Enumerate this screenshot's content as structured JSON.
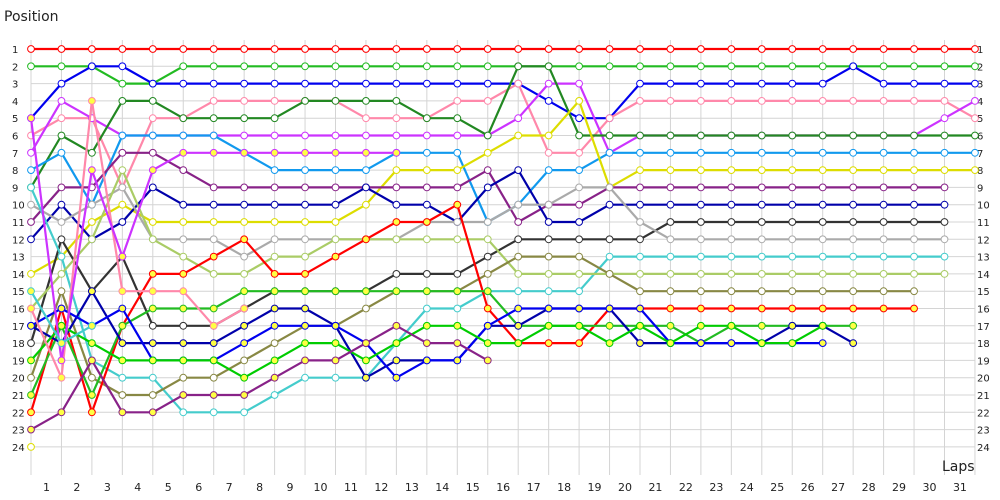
{
  "chart_data": {
    "type": "line",
    "ylabel": "Position",
    "xlabel": "Laps",
    "x_ticks": [
      1,
      2,
      3,
      4,
      5,
      6,
      7,
      8,
      9,
      10,
      11,
      12,
      13,
      14,
      15,
      16,
      17,
      18,
      19,
      20,
      21,
      22,
      23,
      24,
      25,
      26,
      27,
      28,
      29,
      30,
      31
    ],
    "y_ticks": [
      1,
      2,
      3,
      4,
      5,
      6,
      7,
      8,
      9,
      10,
      11,
      12,
      13,
      14,
      15,
      16,
      17,
      18,
      19,
      20,
      21,
      22,
      23,
      24
    ],
    "ylim": [
      1,
      24
    ],
    "xlim": [
      0,
      31
    ],
    "grid": true,
    "series": [
      {
        "color": "#ff0000",
        "fill": "#ffffff",
        "values": [
          1,
          1,
          1,
          1,
          1,
          1,
          1,
          1,
          1,
          1,
          1,
          1,
          1,
          1,
          1,
          1,
          1,
          1,
          1,
          1,
          1,
          1,
          1,
          1,
          1,
          1,
          1,
          1,
          1,
          1,
          1,
          1
        ]
      },
      {
        "color": "#22bb22",
        "fill": "#ffffff",
        "values": [
          2,
          2,
          2,
          3,
          3,
          2,
          2,
          2,
          2,
          2,
          2,
          2,
          2,
          2,
          2,
          2,
          2,
          2,
          2,
          2,
          2,
          2,
          2,
          2,
          2,
          2,
          2,
          2,
          2,
          2,
          2,
          2
        ]
      },
      {
        "color": "#0000ee",
        "fill": "#ffffff",
        "values": [
          5,
          3,
          2,
          2,
          3,
          3,
          3,
          3,
          3,
          3,
          3,
          3,
          3,
          3,
          3,
          3,
          3,
          4,
          5,
          5,
          3,
          3,
          3,
          3,
          3,
          3,
          3,
          2,
          3,
          3,
          3,
          3
        ]
      },
      {
        "color": "#ff88aa",
        "fill": "#ffffff",
        "values": [
          6,
          5,
          5,
          9,
          5,
          5,
          4,
          4,
          4,
          4,
          4,
          5,
          5,
          5,
          4,
          4,
          3,
          7,
          7,
          5,
          4,
          4,
          4,
          4,
          4,
          4,
          4,
          4,
          4,
          4,
          4,
          5
        ]
      },
      {
        "color": "#cc33ff",
        "fill": "#ffffff",
        "values": [
          7,
          4,
          5,
          6,
          6,
          6,
          6,
          6,
          6,
          6,
          6,
          6,
          6,
          6,
          6,
          6,
          5,
          3,
          3,
          7,
          6,
          6,
          6,
          6,
          6,
          6,
          6,
          6,
          6,
          6,
          5,
          4
        ]
      },
      {
        "color": "#228822",
        "fill": "#ffffff",
        "values": [
          9,
          6,
          7,
          4,
          4,
          5,
          5,
          5,
          5,
          4,
          4,
          4,
          4,
          5,
          5,
          6,
          2,
          2,
          6,
          6,
          6,
          6,
          6,
          6,
          6,
          6,
          6,
          6,
          6,
          6,
          6,
          6
        ]
      },
      {
        "color": "#1199ee",
        "fill": "#ffffff",
        "values": [
          8,
          7,
          10,
          6,
          6,
          6,
          6,
          7,
          8,
          8,
          8,
          8,
          7,
          7,
          7,
          11,
          10,
          8,
          8,
          7,
          7,
          7,
          7,
          7,
          7,
          7,
          7,
          7,
          7,
          7,
          7,
          7
        ]
      },
      {
        "color": "#dddd00",
        "fill": "#ffffff",
        "values": [
          14,
          13,
          11,
          10,
          11,
          11,
          11,
          11,
          11,
          11,
          11,
          10,
          8,
          8,
          8,
          7,
          6,
          6,
          4,
          9,
          8,
          8,
          8,
          8,
          8,
          8,
          8,
          8,
          8,
          8,
          8,
          8
        ]
      },
      {
        "color": "#882288",
        "fill": "#ffffff",
        "values": [
          11,
          9,
          9,
          7,
          7,
          8,
          9,
          9,
          9,
          9,
          9,
          9,
          9,
          9,
          9,
          8,
          11,
          10,
          10,
          9,
          9,
          9,
          9,
          9,
          9,
          9,
          9,
          9,
          9,
          9,
          9
        ]
      },
      {
        "color": "#0000aa",
        "fill": "#ffffff",
        "values": [
          12,
          10,
          12,
          11,
          9,
          10,
          10,
          10,
          10,
          10,
          10,
          9,
          10,
          10,
          11,
          9,
          8,
          11,
          11,
          10,
          10,
          10,
          10,
          10,
          10,
          10,
          10,
          10,
          10,
          10,
          10
        ]
      },
      {
        "color": "#333333",
        "fill": "#ffffff",
        "values": [
          18,
          12,
          15,
          13,
          17,
          17,
          17,
          16,
          15,
          15,
          15,
          15,
          14,
          14,
          14,
          13,
          12,
          12,
          12,
          12,
          12,
          11,
          11,
          11,
          11,
          11,
          11,
          11,
          11,
          11,
          11
        ]
      },
      {
        "color": "#aaaaaa",
        "fill": "#ffffff",
        "values": [
          10,
          11,
          10,
          9,
          12,
          12,
          12,
          13,
          12,
          12,
          12,
          12,
          12,
          11,
          11,
          11,
          10,
          10,
          9,
          9,
          11,
          12,
          12,
          12,
          12,
          12,
          12,
          12,
          12,
          12,
          12
        ]
      },
      {
        "color": "#44cccc",
        "fill": "#ffffff",
        "values": [
          9,
          13,
          19,
          20,
          20,
          22,
          22,
          22,
          21,
          20,
          20,
          20,
          18,
          16,
          16,
          15,
          15,
          15,
          15,
          13,
          13,
          13,
          13,
          13,
          13,
          13,
          13,
          13,
          13,
          13,
          13
        ]
      },
      {
        "color": "#aacc66",
        "fill": "#ffffff",
        "values": [
          16,
          14,
          12,
          8,
          12,
          13,
          14,
          14,
          13,
          13,
          12,
          12,
          12,
          12,
          12,
          12,
          14,
          14,
          14,
          14,
          14,
          14,
          14,
          14,
          14,
          14,
          14,
          14,
          14,
          14,
          14
        ]
      },
      {
        "color": "#888844",
        "fill": "#ffffff",
        "values": [
          20,
          15,
          20,
          21,
          21,
          20,
          20,
          19,
          18,
          17,
          17,
          16,
          15,
          15,
          15,
          14,
          13,
          13,
          13,
          14,
          15,
          15,
          15,
          15,
          15,
          15,
          15,
          15,
          15,
          15
        ]
      },
      {
        "color": "#ff0000",
        "fill": "#ffff44",
        "values": [
          22,
          16,
          22,
          17,
          14,
          14,
          13,
          12,
          14,
          14,
          13,
          12,
          11,
          11,
          10,
          16,
          18,
          18,
          18,
          16,
          16,
          16,
          16,
          16,
          16,
          16,
          16,
          16,
          16,
          16
        ]
      },
      {
        "color": "#22bb22",
        "fill": "#ffff44",
        "values": [
          21,
          17,
          21,
          17,
          16,
          16,
          16,
          15,
          15,
          15,
          15,
          15,
          15,
          15,
          15,
          15,
          17,
          17,
          17,
          17,
          17,
          17,
          18,
          17,
          17,
          17,
          17,
          17
        ]
      },
      {
        "color": "#0000aa",
        "fill": "#ffff44",
        "values": [
          17,
          18,
          15,
          18,
          18,
          18,
          18,
          17,
          16,
          16,
          17,
          20,
          19,
          19,
          19,
          17,
          17,
          16,
          16,
          16,
          18,
          18,
          18,
          18,
          18,
          17,
          17,
          18
        ]
      },
      {
        "color": "#0000ee",
        "fill": "#ffff44",
        "values": [
          17,
          16,
          17,
          16,
          19,
          19,
          19,
          18,
          17,
          17,
          17,
          18,
          20,
          19,
          19,
          17,
          16,
          16,
          16,
          16,
          16,
          18,
          18,
          18,
          18,
          18,
          18
        ]
      },
      {
        "color": "#00cc00",
        "fill": "#ffff44",
        "values": [
          19,
          17,
          18,
          19,
          19,
          19,
          19,
          20,
          19,
          18,
          18,
          19,
          18,
          17,
          17,
          18,
          18,
          17,
          17,
          18,
          17,
          18,
          17,
          17,
          18,
          18,
          17
        ]
      },
      {
        "color": "#ff88aa",
        "fill": "#ffff44",
        "values": [
          16,
          20,
          4,
          15,
          15,
          15,
          17,
          16
        ]
      },
      {
        "color": "#cc33ff",
        "fill": "#ffff44",
        "values": [
          5,
          19,
          8,
          13,
          8,
          7,
          7,
          7,
          7,
          7,
          7,
          7,
          7
        ]
      },
      {
        "color": "#44cccc",
        "fill": "#ffff44",
        "values": [
          15,
          18,
          17
        ]
      },
      {
        "color": "#882288",
        "fill": "#ffff44",
        "values": [
          23,
          22,
          19,
          22,
          22,
          21,
          21,
          21,
          20,
          19,
          19,
          18,
          17,
          18,
          18,
          19
        ]
      },
      {
        "color": "#dddd00",
        "fill": "#ffffff",
        "values": [
          24
        ]
      }
    ]
  }
}
